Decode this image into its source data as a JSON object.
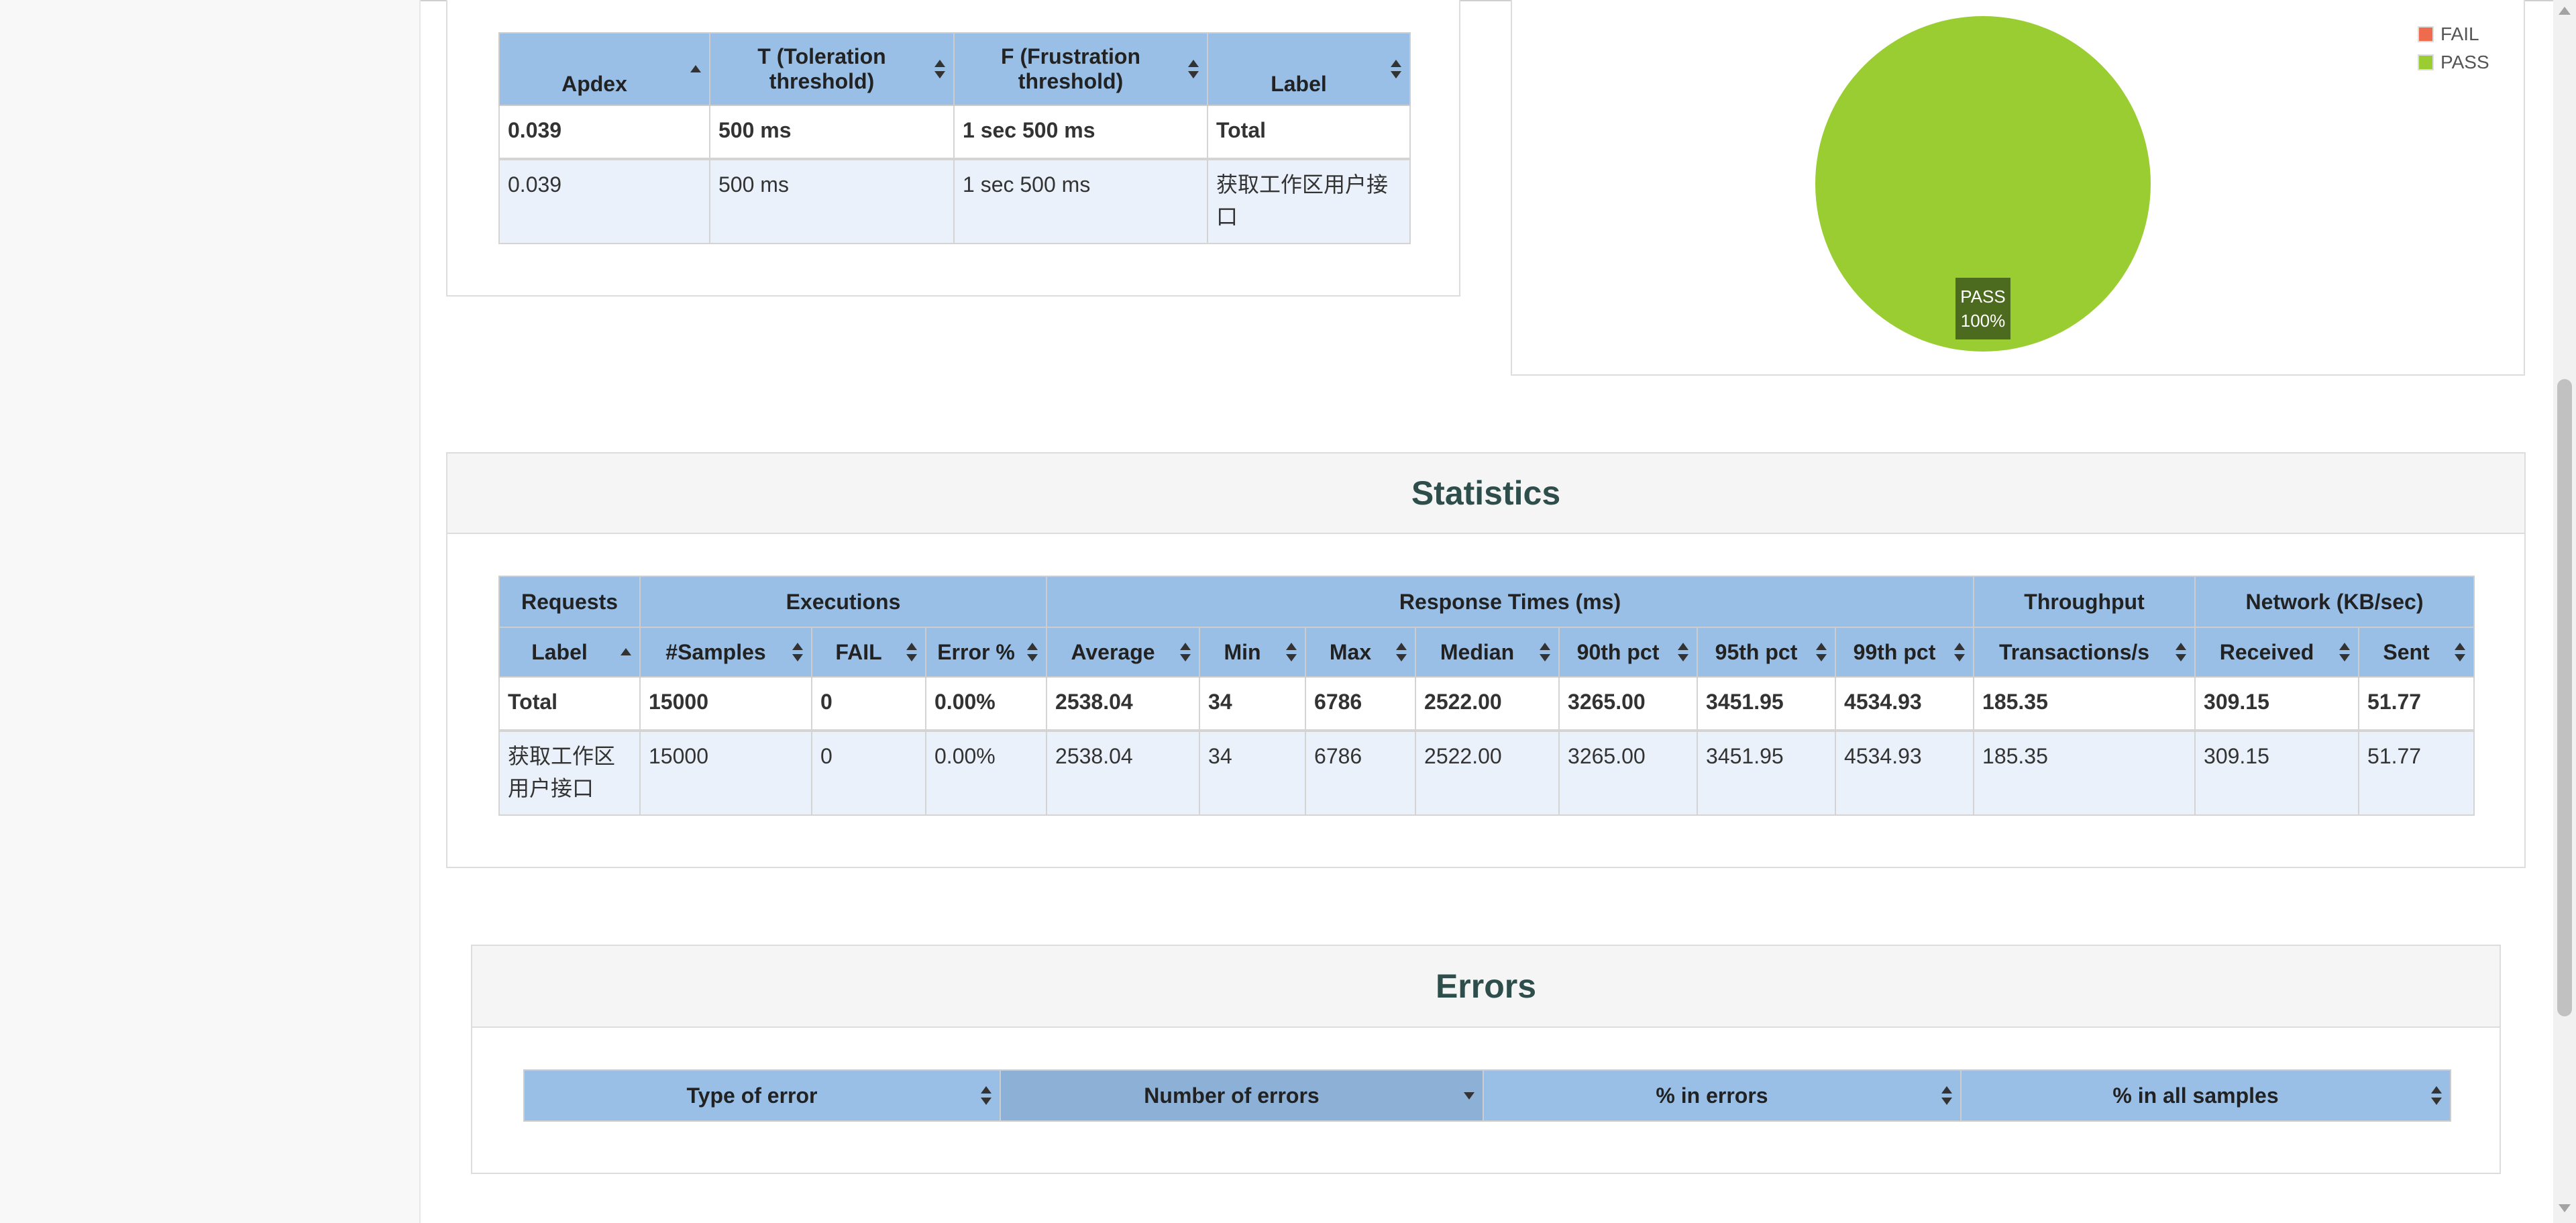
{
  "apdex": {
    "headers": {
      "apdex": "Apdex",
      "t": "T (Toleration threshold)",
      "f": "F (Frustration threshold)",
      "label": "Label"
    },
    "rows": [
      {
        "apdex": "0.039",
        "t": "500 ms",
        "f": "1 sec 500 ms",
        "label": "Total"
      },
      {
        "apdex": "0.039",
        "t": "500 ms",
        "f": "1 sec 500 ms",
        "label": "获取工作区用户接口"
      }
    ]
  },
  "pie": {
    "legend": [
      "FAIL",
      "PASS"
    ],
    "slice_label": "PASS",
    "slice_percent": "100%"
  },
  "chart_data": {
    "type": "pie",
    "labels": [
      "FAIL",
      "PASS"
    ],
    "values": [
      0,
      100
    ],
    "colors": [
      "#ef6b4d",
      "#9acd32"
    ],
    "legend_position": "top-right"
  },
  "statistics": {
    "title": "Statistics",
    "groups": [
      "Requests",
      "Executions",
      "Response Times (ms)",
      "Throughput",
      "Network (KB/sec)"
    ],
    "columns": [
      "Label",
      "#Samples",
      "FAIL",
      "Error %",
      "Average",
      "Min",
      "Max",
      "Median",
      "90th pct",
      "95th pct",
      "99th pct",
      "Transactions/s",
      "Received",
      "Sent"
    ],
    "total": [
      "Total",
      "15000",
      "0",
      "0.00%",
      "2538.04",
      "34",
      "6786",
      "2522.00",
      "3265.00",
      "3451.95",
      "4534.93",
      "185.35",
      "309.15",
      "51.77"
    ],
    "row": [
      "获取工作区用户接口",
      "15000",
      "0",
      "0.00%",
      "2538.04",
      "34",
      "6786",
      "2522.00",
      "3265.00",
      "3451.95",
      "4534.93",
      "185.35",
      "309.15",
      "51.77"
    ]
  },
  "errors": {
    "title": "Errors",
    "columns": [
      "Type of error",
      "Number of errors",
      "% in errors",
      "% in all samples"
    ]
  },
  "colors": {
    "header_blue": "#99bfe6",
    "row_blue": "#eaf1fa",
    "pass": "#9acd32",
    "fail": "#ef6b4d",
    "title": "#2e4e4c"
  }
}
